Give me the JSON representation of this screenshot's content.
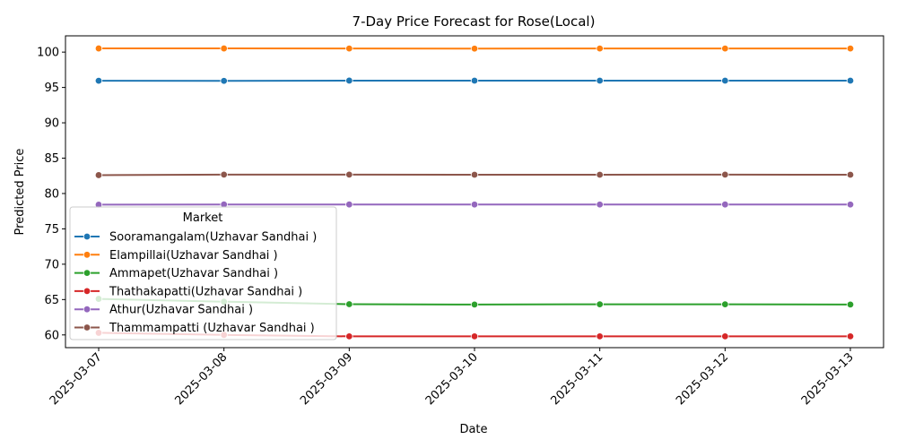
{
  "chart_data": {
    "type": "line",
    "title": "7-Day Price Forecast for Rose(Local)",
    "xlabel": "Date",
    "ylabel": "Predicted Price",
    "x": [
      "2025-03-07",
      "2025-03-08",
      "2025-03-09",
      "2025-03-10",
      "2025-03-11",
      "2025-03-12",
      "2025-03-13"
    ],
    "ylim": [
      58.2,
      102.3
    ],
    "yticks": [
      60,
      65,
      70,
      75,
      80,
      85,
      90,
      95,
      100
    ],
    "grid": false,
    "legend": {
      "title": "Market",
      "placement": "center-left"
    },
    "series": [
      {
        "name": "Sooramangalam(Uzhavar Sandhai )",
        "color": "#1f77b4",
        "values": [
          95.95,
          95.93,
          95.97,
          95.96,
          95.96,
          95.96,
          95.96
        ]
      },
      {
        "name": "Elampillai(Uzhavar Sandhai )",
        "color": "#ff7f0e",
        "values": [
          100.52,
          100.52,
          100.51,
          100.49,
          100.51,
          100.51,
          100.51
        ]
      },
      {
        "name": "Ammapet(Uzhavar Sandhai )",
        "color": "#2ca02c",
        "values": [
          65.1,
          64.7,
          64.35,
          64.3,
          64.33,
          64.33,
          64.3
        ]
      },
      {
        "name": "Thathakapatti(Uzhavar Sandhai )",
        "color": "#d62728",
        "values": [
          60.3,
          60.0,
          59.8,
          59.8,
          59.8,
          59.8,
          59.8
        ]
      },
      {
        "name": "Athur(Uzhavar Sandhai )",
        "color": "#9467bd",
        "values": [
          78.42,
          78.45,
          78.45,
          78.44,
          78.44,
          78.45,
          78.44
        ]
      },
      {
        "name": "Thammampatti (Uzhavar Sandhai )",
        "color": "#8c564b",
        "values": [
          82.6,
          82.67,
          82.67,
          82.66,
          82.66,
          82.67,
          82.66
        ]
      }
    ]
  }
}
